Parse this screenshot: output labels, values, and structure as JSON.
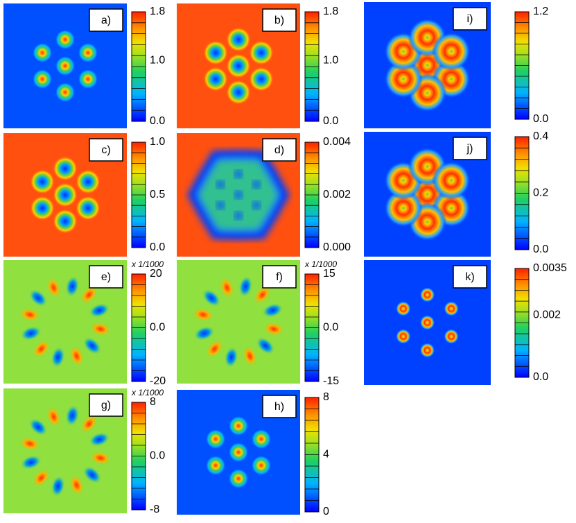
{
  "panels": [
    {
      "label": "a)",
      "ticks": [
        "1.8",
        "1.0",
        "0.0"
      ]
    },
    {
      "label": "b)",
      "ticks": [
        "1.8",
        "1.0",
        "0.0"
      ]
    },
    {
      "label": "i)",
      "ticks": [
        "1.2",
        "0.0"
      ]
    },
    {
      "label": "c)",
      "ticks": [
        "1.0",
        "0.5",
        "0.0"
      ]
    },
    {
      "label": "d)",
      "ticks": [
        "0.004",
        "0.002",
        "0.000"
      ]
    },
    {
      "label": "j)",
      "ticks": [
        "0.4",
        "0.2",
        "0.0"
      ]
    },
    {
      "label": "e)",
      "scale": "x 1/1000",
      "ticks": [
        "20",
        "0.0",
        "-20"
      ]
    },
    {
      "label": "f)",
      "scale": "x 1/1000",
      "ticks": [
        "15",
        "0.0",
        "-15"
      ]
    },
    {
      "label": "k)",
      "ticks": [
        "0.0035",
        "0.002",
        "0.0"
      ]
    },
    {
      "label": "g)",
      "scale": "x 1/1000",
      "ticks": [
        "8",
        "0.0",
        "-8"
      ]
    },
    {
      "label": "h)",
      "ticks": [
        "8",
        "4",
        "0"
      ]
    }
  ]
}
